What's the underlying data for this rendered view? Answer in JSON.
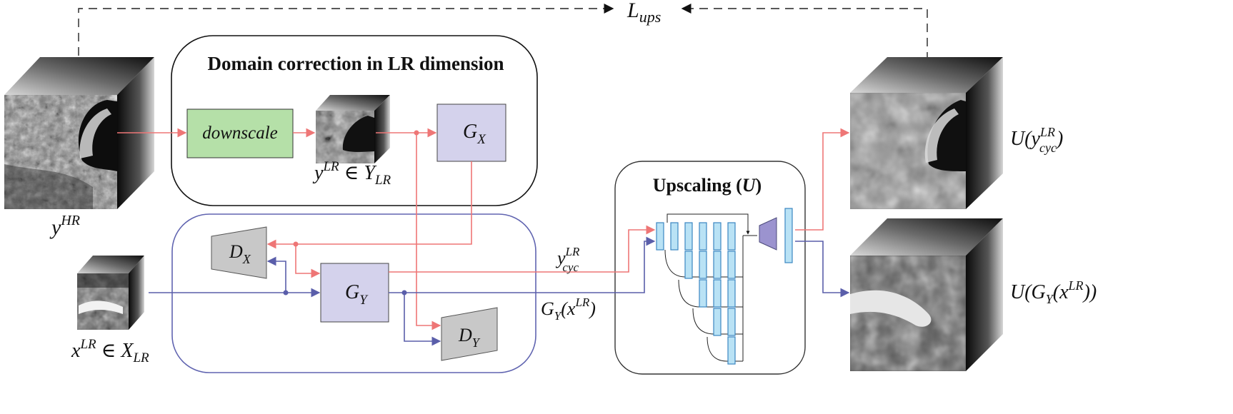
{
  "colors": {
    "red_arrow": "#ee7676",
    "blue_arrow": "#5a5eaa",
    "generator_fill": "#d4d2ec",
    "downscale_fill": "#b5e0a8",
    "discriminator_fill": "#c8c8c8",
    "unet_block_fill": "#b9e2f5",
    "unet_block_stroke": "#3b87c2",
    "final_conv_fill": "#9b93cf",
    "group_blue_stroke": "#6064b0"
  },
  "loss": {
    "main": "L",
    "sub": "ups"
  },
  "domain_box": {
    "title": "Domain correction in LR dimension"
  },
  "upscaling_box": {
    "title_text": "Upscaling (",
    "title_var": "U",
    "title_close": ")"
  },
  "downscale": {
    "label": "downscale"
  },
  "gx": {
    "main": "G",
    "sub": "X"
  },
  "gy": {
    "main": "G",
    "sub": "Y"
  },
  "dx": {
    "main": "D",
    "sub": "X"
  },
  "dy": {
    "main": "D",
    "sub": "Y"
  },
  "labels": {
    "y_hr": {
      "main": "y",
      "sup": "HR"
    },
    "y_lr": {
      "main": "y",
      "sup": "LR",
      "rel": " ∈ ",
      "set": "Y",
      "set_sub": "LR"
    },
    "x_lr": {
      "main": "x",
      "sup": "LR",
      "rel": " ∈ ",
      "set": "X",
      "set_sub": "LR"
    },
    "y_cyc": {
      "main": "y",
      "sup": "LR",
      "sub": "cyc"
    },
    "gy_x": {
      "main": "G",
      "sub": "Y",
      "open": "(x",
      "sup": "LR",
      "close": ")"
    },
    "u_ycyc": {
      "main": "U(y",
      "sup": "LR",
      "sub": "cyc",
      "close": ")"
    },
    "u_gy": {
      "main": "U(G",
      "sub": "Y",
      "open": "(x",
      "sup": "LR",
      "close": "))"
    }
  },
  "icons": {
    "mri_hr": "mri-volume-icon",
    "mri_lr": "mri-volume-icon",
    "discriminator": "trapezoid-icon",
    "unet": "unet-network-icon"
  }
}
